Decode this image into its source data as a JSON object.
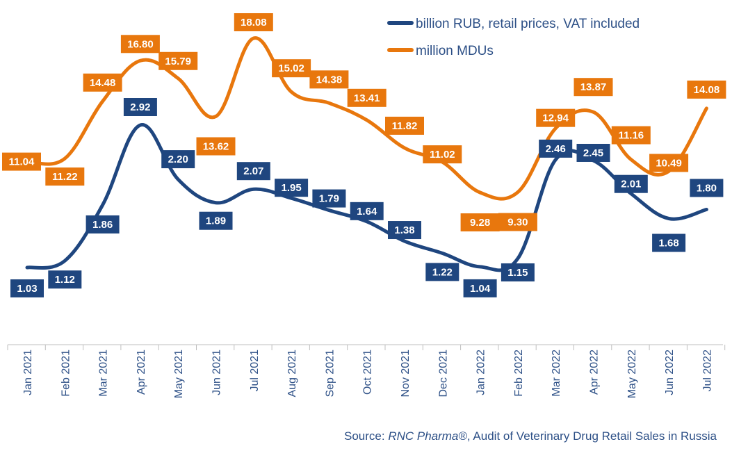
{
  "chart_data": {
    "type": "line",
    "categories": [
      "Jan 2021",
      "Feb 2021",
      "Mar 2021",
      "Apr 2021",
      "May 2021",
      "Jun 2021",
      "Jul 2021",
      "Aug 2021",
      "Sep 2021",
      "Oct 2021",
      "Nov 2021",
      "Dec 2021",
      "Jan 2022",
      "Feb 2022",
      "Mar 2022",
      "Apr 2022",
      "May 2022",
      "Jun 2022",
      "Jul 2022"
    ],
    "series": [
      {
        "name": "billion RUB, retail prices, VAT included",
        "color": "#1f467f",
        "values": [
          1.03,
          1.12,
          1.86,
          2.92,
          2.2,
          1.89,
          2.07,
          1.95,
          1.79,
          1.64,
          1.38,
          1.22,
          1.04,
          1.15,
          2.46,
          2.45,
          2.01,
          1.68,
          1.8
        ],
        "labels": [
          "1.03",
          "1.12",
          "1.86",
          "2.92",
          "2.20",
          "1.89",
          "2.07",
          "1.95",
          "1.79",
          "1.64",
          "1.38",
          "1.22",
          "1.04",
          "1.15",
          "2.46",
          "2.45",
          "2.01",
          "1.68",
          "1.80"
        ]
      },
      {
        "name": "million MDUs",
        "color": "#e8770d",
        "values": [
          11.04,
          11.22,
          14.48,
          16.8,
          15.79,
          13.62,
          18.08,
          15.02,
          14.38,
          13.41,
          11.82,
          11.02,
          9.28,
          9.3,
          12.94,
          13.87,
          11.16,
          10.49,
          14.08
        ],
        "labels": [
          "11.04",
          "11.22",
          "14.48",
          "16.80",
          "15.79",
          "13.62",
          "18.08",
          "15.02",
          "14.38",
          "13.41",
          "11.82",
          "11.02",
          "9.28",
          "9.30",
          "12.94",
          "13.87",
          "11.16",
          "10.49",
          "14.08"
        ]
      }
    ],
    "legend_position": "top-right",
    "grid": false
  },
  "source": {
    "prefix": "Source: ",
    "brand": "RNC Pharma®",
    "suffix": ", Audit of Veterinary Drug Retail Sales in Russia"
  }
}
